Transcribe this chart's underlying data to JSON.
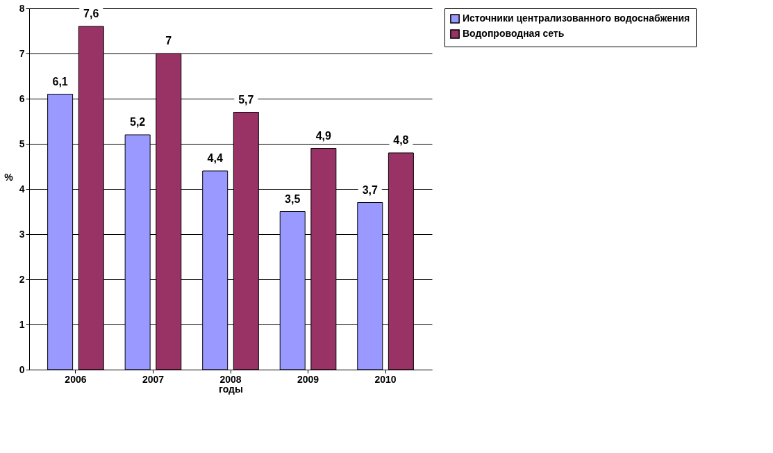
{
  "chart_data": {
    "type": "bar",
    "xlabel": "годы",
    "ylabel": "%",
    "categories": [
      "2006",
      "2007",
      "2008",
      "2009",
      "2010"
    ],
    "series": [
      {
        "name": "Источники централизованного водоснабжения",
        "color": "#9999ff",
        "values": [
          6.1,
          5.2,
          4.4,
          3.5,
          3.7
        ],
        "value_labels": [
          "6,1",
          "5,2",
          "4,4",
          "3,5",
          "3,7"
        ]
      },
      {
        "name": "Водопроводная сеть",
        "color": "#993366",
        "values": [
          7.6,
          7,
          5.7,
          4.9,
          4.8
        ],
        "value_labels": [
          "7,6",
          "7",
          "5,7",
          "4,9",
          "4,8"
        ]
      }
    ],
    "ylim": [
      0,
      8
    ],
    "yticks": [
      0,
      1,
      2,
      3,
      4,
      5,
      6,
      7,
      8
    ],
    "grid": "y",
    "legend": "right"
  }
}
